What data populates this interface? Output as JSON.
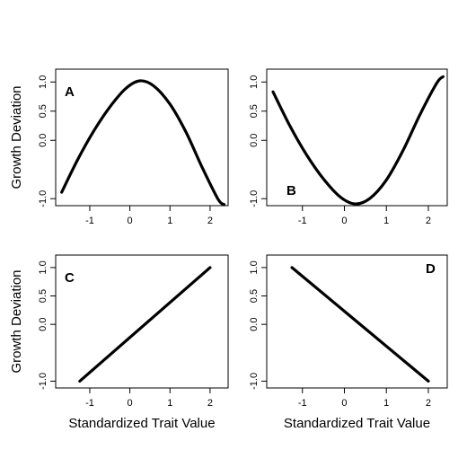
{
  "chart_data": [
    {
      "type": "line",
      "panel_label": "A",
      "xlabel": "",
      "ylabel": "Growth Deviation",
      "xlim": [
        -1.85,
        2.45
      ],
      "ylim": [
        -1.12,
        1.22
      ],
      "xticks": [
        -1,
        0,
        1,
        2
      ],
      "xtick_labels": [
        "-1",
        "0",
        "1",
        "2"
      ],
      "yticks": [
        -1.0,
        0.0,
        0.5,
        1.0
      ],
      "ytick_labels": [
        "-1.0",
        "0.0",
        "0.5",
        "1.0"
      ],
      "label_position": "top-left",
      "series": [
        {
          "x": [
            -1.7,
            -1.3,
            -0.9,
            -0.5,
            -0.1,
            0.25,
            0.6,
            1.0,
            1.4,
            1.8,
            2.2,
            2.35
          ],
          "y": [
            -0.89,
            -0.33,
            0.16,
            0.57,
            0.89,
            1.02,
            0.93,
            0.62,
            0.14,
            -0.46,
            -1.01,
            -1.1
          ]
        }
      ]
    },
    {
      "type": "line",
      "panel_label": "B",
      "xlabel": "",
      "ylabel": "",
      "xlim": [
        -1.85,
        2.45
      ],
      "ylim": [
        -1.12,
        1.22
      ],
      "xticks": [
        -1,
        0,
        1,
        2
      ],
      "xtick_labels": [
        "-1",
        "0",
        "1",
        "2"
      ],
      "yticks": [
        -1.0,
        0.0,
        0.5,
        1.0
      ],
      "ytick_labels": [
        "-1.0",
        "0.0",
        "0.5",
        "1.0"
      ],
      "label_position": "bottom-left",
      "series": [
        {
          "x": [
            -1.7,
            -1.3,
            -0.9,
            -0.5,
            -0.1,
            0.25,
            0.6,
            1.0,
            1.4,
            1.8,
            2.2,
            2.35
          ],
          "y": [
            0.83,
            0.25,
            -0.25,
            -0.66,
            -0.97,
            -1.09,
            -1.0,
            -0.68,
            -0.17,
            0.44,
            0.98,
            1.09
          ]
        }
      ]
    },
    {
      "type": "line",
      "panel_label": "C",
      "xlabel": "Standardized Trait Value",
      "ylabel": "Growth Deviation",
      "xlim": [
        -1.85,
        2.45
      ],
      "ylim": [
        -1.12,
        1.22
      ],
      "xticks": [
        -1,
        0,
        1,
        2
      ],
      "xtick_labels": [
        "-1",
        "0",
        "1",
        "2"
      ],
      "yticks": [
        -1.0,
        0.0,
        0.5,
        1.0
      ],
      "ytick_labels": [
        "-1.0",
        "0.0",
        "0.5",
        "1.0"
      ],
      "label_position": "top-left",
      "series": [
        {
          "x": [
            -1.25,
            2.0
          ],
          "y": [
            -1.0,
            1.0
          ]
        }
      ]
    },
    {
      "type": "line",
      "panel_label": "D",
      "xlabel": "Standardized Trait Value",
      "ylabel": "",
      "xlim": [
        -1.85,
        2.45
      ],
      "ylim": [
        -1.12,
        1.22
      ],
      "xticks": [
        -1,
        0,
        1,
        2
      ],
      "xtick_labels": [
        "-1",
        "0",
        "1",
        "2"
      ],
      "yticks": [
        -1.0,
        0.0,
        0.5,
        1.0
      ],
      "ytick_labels": [
        "-1.0",
        "0.0",
        "0.5",
        "1.0"
      ],
      "label_position": "top-right",
      "series": [
        {
          "x": [
            -1.25,
            2.0
          ],
          "y": [
            1.0,
            -1.0
          ]
        }
      ]
    }
  ]
}
